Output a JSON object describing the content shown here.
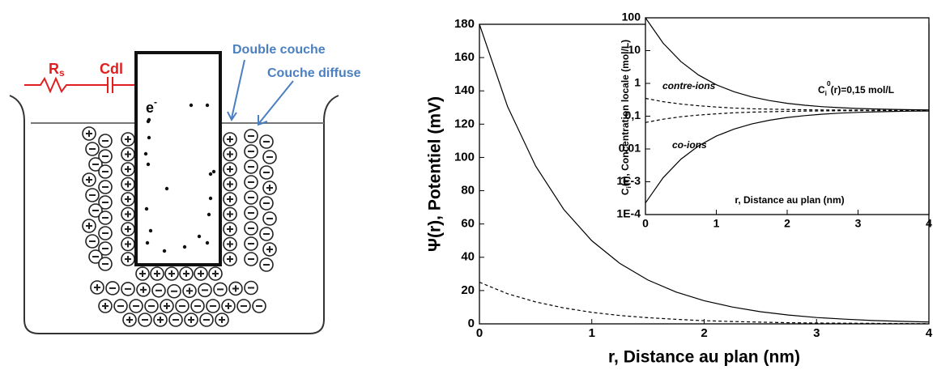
{
  "diagram": {
    "labels": {
      "rs": {
        "base": "R",
        "sub": "s"
      },
      "cdl": "Cdl",
      "electron": {
        "base": "e",
        "sup": "-"
      },
      "double": "Double couche",
      "diffuse": "Couche diffuse"
    }
  },
  "chart_data": [
    {
      "type": "line",
      "xlabel": "r, Distance au plan (nm)",
      "ylabel": "Ψ(r), Potentiel (mV)",
      "x": [
        0,
        0.25,
        0.5,
        0.75,
        1,
        1.25,
        1.5,
        1.75,
        2,
        2.25,
        2.5,
        2.75,
        3,
        3.25,
        3.5,
        3.75,
        4
      ],
      "series": [
        {
          "color": "#000000",
          "dashed": false,
          "values": [
            180,
            130.6,
            94.8,
            68.8,
            49.9,
            36.3,
            26.3,
            19.1,
            13.9,
            10.1,
            7.3,
            5.3,
            3.8,
            2.8,
            2.0,
            1.5,
            1.1
          ]
        },
        {
          "color": "#000000",
          "dashed": true,
          "values": [
            25,
            18.1,
            13.2,
            9.6,
            6.9,
            5.0,
            3.7,
            2.7,
            1.9,
            1.4,
            1.0,
            0.7,
            0.5,
            0.4,
            0.3,
            0.2,
            0.1
          ]
        }
      ],
      "xlim": [
        0,
        4
      ],
      "xticks": [
        0,
        1,
        2,
        3,
        4
      ],
      "ylim": [
        0,
        180
      ],
      "yticks": [
        0,
        20,
        40,
        60,
        80,
        100,
        120,
        140,
        160,
        180
      ]
    },
    {
      "type": "line",
      "xlabel": "r, Distance au plan (nm)",
      "ylabel": {
        "base": "C",
        "sub": "i",
        "rest": "(r), Concentration locale (mol/L)"
      },
      "annotations": {
        "contre": "contre-ions",
        "co": "co-ions",
        "bulk": {
          "base": "C",
          "sub": "i",
          "sup": "0",
          "rest": "(r)=0,15 mol/L"
        }
      },
      "log_y": true,
      "x": [
        0,
        0.25,
        0.5,
        0.75,
        1,
        1.25,
        1.5,
        1.75,
        2,
        2.25,
        2.5,
        2.75,
        3,
        3.25,
        3.5,
        3.75,
        4
      ],
      "series": [
        {
          "color": "#000000",
          "dashed": false,
          "values": [
            100,
            16.8,
            4.61,
            1.8,
            0.91,
            0.556,
            0.388,
            0.299,
            0.247,
            0.216,
            0.195,
            0.182,
            0.172,
            0.166,
            0.161,
            0.158,
            0.156
          ]
        },
        {
          "color": "#000000",
          "dashed": false,
          "values": [
            0.000225,
            0.00134,
            0.00488,
            0.0125,
            0.0247,
            0.0405,
            0.058,
            0.0753,
            0.0911,
            0.104,
            0.115,
            0.124,
            0.131,
            0.136,
            0.14,
            0.142,
            0.144
          ]
        },
        {
          "color": "#000000",
          "dashed": true,
          "values": [
            0.35,
            0.277,
            0.235,
            0.208,
            0.19,
            0.177,
            0.169,
            0.164,
            0.16,
            0.157,
            0.155,
            0.154,
            0.153,
            0.152,
            0.151,
            0.151,
            0.15
          ]
        },
        {
          "color": "#000000",
          "dashed": true,
          "values": [
            0.064,
            0.081,
            0.096,
            0.108,
            0.118,
            0.127,
            0.133,
            0.137,
            0.141,
            0.143,
            0.145,
            0.146,
            0.147,
            0.148,
            0.149,
            0.149,
            0.15
          ]
        }
      ],
      "xlim": [
        0,
        4
      ],
      "xticks": [
        0,
        1,
        2,
        3,
        4
      ],
      "ylim": [
        0.0001,
        100
      ],
      "yticks": [
        {
          "value": 0.0001,
          "label": "1E-4"
        },
        {
          "value": 0.001,
          "label": "1E-3"
        },
        {
          "value": 0.01,
          "label": "0,01"
        },
        {
          "value": 0.1,
          "label": "0,1"
        },
        1,
        10,
        100
      ]
    }
  ]
}
